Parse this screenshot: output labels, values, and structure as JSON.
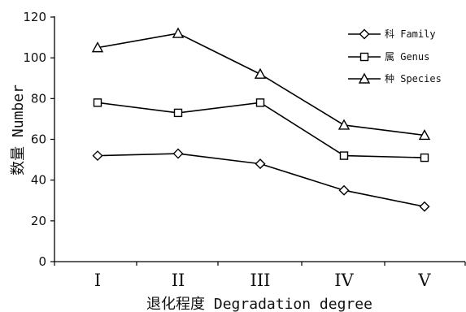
{
  "chart_data": {
    "type": "line",
    "categories": [
      "I",
      "II",
      "III",
      "IV",
      "V"
    ],
    "series": [
      {
        "name": "科 Family",
        "marker": "diamond",
        "values": [
          52,
          53,
          48,
          35,
          27
        ]
      },
      {
        "name": "属 Genus",
        "marker": "square",
        "values": [
          78,
          73,
          78,
          52,
          51
        ]
      },
      {
        "name": "种 Species",
        "marker": "triangle",
        "values": [
          105,
          112,
          92,
          67,
          62
        ]
      }
    ],
    "xlabel": "退化程度 Degradation degree",
    "ylabel": "数量 Number",
    "ylim": [
      0,
      120
    ],
    "yticks": [
      0,
      20,
      40,
      60,
      80,
      100,
      120
    ],
    "grid": false,
    "legend_position": "top-right",
    "colors": {
      "line": "#000000",
      "marker_fill": "#ffffff",
      "text": "#111111"
    }
  }
}
